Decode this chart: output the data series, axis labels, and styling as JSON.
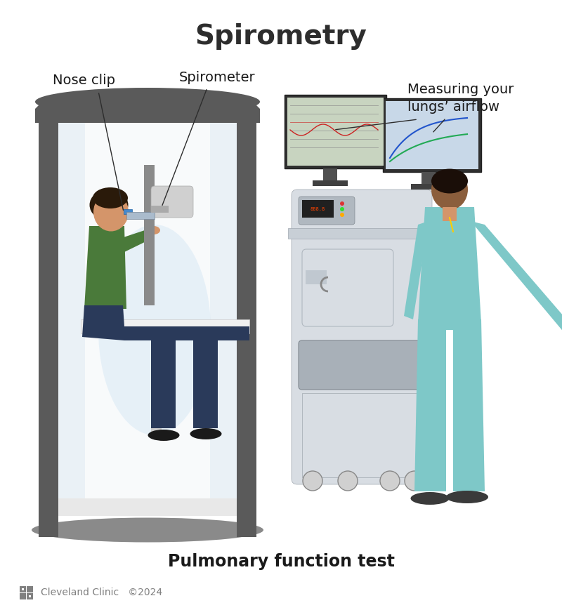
{
  "title": "Spirometry",
  "subtitle": "Pulmonary function test",
  "footer": "Cleveland Clinic   ©2024",
  "label_nose_clip": "Nose clip",
  "label_spirometer": "Spirometer",
  "label_measuring": "Measuring your\nlungs’ airflow",
  "bg_color": "#ffffff",
  "title_color": "#2d2d2d",
  "label_color": "#1a1a1a",
  "subtitle_color": "#1a1a1a",
  "footer_color": "#808080",
  "line_color": "#2d2d2d",
  "booth_gray_dark": "#5a5a5a",
  "booth_gray_mid": "#8a8a8a",
  "booth_gray_light": "#c8c8c8",
  "booth_glass": "#dce8f0",
  "booth_glass_alpha": 0.5,
  "scrubs_color": "#7ec8c8",
  "shirt_color": "#4a7a3a",
  "pants_color": "#2a3a5a",
  "skin_color": "#c8874a",
  "skin_dark": "#8b5e3c",
  "hair_color": "#2a1a0a",
  "monitor_bg": "#c8d8e8",
  "equipment_light": "#d8dde3",
  "equipment_mid": "#b0b8c0"
}
